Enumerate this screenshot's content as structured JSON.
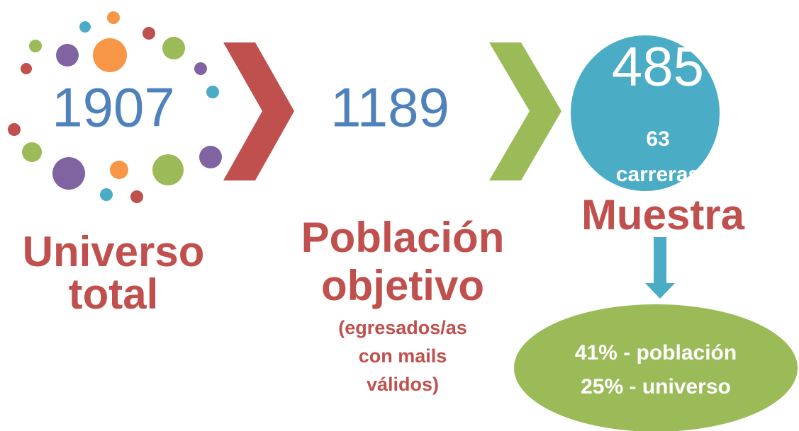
{
  "universe": {
    "number": "1907",
    "label_lines": [
      "Universo",
      "total"
    ]
  },
  "population": {
    "number": "1189",
    "label_lines": [
      "Población",
      "objetivo"
    ],
    "note_lines": [
      "(egresados/as",
      "con mails",
      "válidos)"
    ]
  },
  "sample": {
    "number": "485",
    "careers_lines": [
      "63",
      "carreras"
    ],
    "label": "Muestra",
    "ratio_lines": [
      "41% - población",
      "25% - universo"
    ]
  }
}
